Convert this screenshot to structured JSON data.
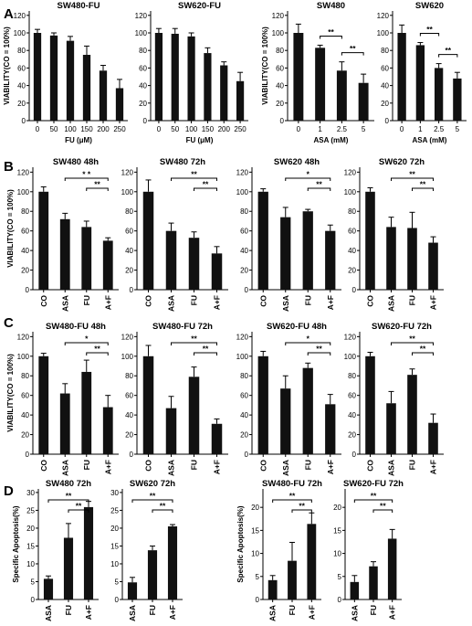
{
  "chart_data": [
    {
      "panel": "A",
      "type": "bar",
      "title": "SW480-FU",
      "categories": [
        "0",
        "50",
        "100",
        "150",
        "200",
        "250"
      ],
      "values": [
        100,
        97,
        91,
        75,
        57,
        37
      ],
      "errors": [
        4,
        3,
        5,
        10,
        6,
        10
      ],
      "xlabel": "FU (μM)",
      "ylabel": "VIABILITY(CO = 100%)",
      "ylim": [
        0,
        125
      ],
      "yticks": [
        0,
        20,
        40,
        60,
        80,
        100,
        120
      ]
    },
    {
      "panel": "A",
      "type": "bar",
      "title": "SW620-FU",
      "categories": [
        "0",
        "50",
        "100",
        "150",
        "200",
        "250"
      ],
      "values": [
        100,
        99,
        96,
        77,
        63,
        45
      ],
      "errors": [
        5,
        6,
        4,
        6,
        4,
        10
      ],
      "xlabel": "FU (μM)",
      "ylabel": "",
      "ylim": [
        0,
        125
      ],
      "yticks": [
        0,
        20,
        40,
        60,
        80,
        100,
        120
      ]
    },
    {
      "panel": "A",
      "type": "bar",
      "title": "SW480",
      "categories": [
        "0",
        "1",
        "2.5",
        "5"
      ],
      "values": [
        100,
        83,
        57,
        43
      ],
      "errors": [
        10,
        3,
        10,
        10
      ],
      "xlabel": "ASA (mM)",
      "ylabel": "VIABILITY(CO = 100%)",
      "ylim": [
        0,
        125
      ],
      "yticks": [
        0,
        20,
        40,
        60,
        80,
        100,
        120
      ],
      "significance": [
        {
          "from": 1,
          "to": 2,
          "label": "**"
        },
        {
          "from": 2,
          "to": 3,
          "label": "**"
        }
      ]
    },
    {
      "panel": "A",
      "type": "bar",
      "title": "SW620",
      "categories": [
        "0",
        "1",
        "2.5",
        "5"
      ],
      "values": [
        100,
        86,
        60,
        48
      ],
      "errors": [
        9,
        3,
        5,
        7
      ],
      "xlabel": "ASA (mM)",
      "ylabel": "",
      "ylim": [
        0,
        125
      ],
      "yticks": [
        0,
        20,
        40,
        60,
        80,
        100,
        120
      ],
      "significance": [
        {
          "from": 1,
          "to": 2,
          "label": "**"
        },
        {
          "from": 2,
          "to": 3,
          "label": "**"
        }
      ]
    },
    {
      "panel": "B",
      "type": "bar",
      "title": "SW480 48h",
      "categories": [
        "CO",
        "ASA",
        "FU",
        "A+F"
      ],
      "values": [
        100,
        72,
        64,
        50
      ],
      "errors": [
        5,
        6,
        6,
        3
      ],
      "xlabel": "",
      "ylabel": "VIABILITY(CO = 100%)",
      "ylim": [
        0,
        125
      ],
      "yticks": [
        0,
        20,
        40,
        60,
        80,
        100,
        120
      ],
      "significance": [
        {
          "from": 1,
          "to": 3,
          "label": "* *"
        },
        {
          "from": 2,
          "to": 3,
          "label": "**"
        }
      ]
    },
    {
      "panel": "B",
      "type": "bar",
      "title": "SW480 72h",
      "categories": [
        "CO",
        "ASA",
        "FU",
        "A+F"
      ],
      "values": [
        100,
        60,
        53,
        37
      ],
      "errors": [
        12,
        8,
        6,
        7
      ],
      "xlabel": "",
      "ylabel": "",
      "ylim": [
        0,
        125
      ],
      "yticks": [
        0,
        20,
        40,
        60,
        80,
        100,
        120
      ],
      "significance": [
        {
          "from": 1,
          "to": 3,
          "label": "**"
        },
        {
          "from": 2,
          "to": 3,
          "label": "**"
        }
      ]
    },
    {
      "panel": "B",
      "type": "bar",
      "title": "SW620 48h",
      "categories": [
        "CO",
        "ASA",
        "FU",
        "A+F"
      ],
      "values": [
        100,
        74,
        80,
        60
      ],
      "errors": [
        3,
        10,
        2,
        6
      ],
      "xlabel": "",
      "ylabel": "",
      "ylim": [
        0,
        125
      ],
      "yticks": [
        0,
        20,
        40,
        60,
        80,
        100,
        120
      ],
      "significance": [
        {
          "from": 1,
          "to": 3,
          "label": "*"
        },
        {
          "from": 2,
          "to": 3,
          "label": "**"
        }
      ]
    },
    {
      "panel": "B",
      "type": "bar",
      "title": "SW620 72h",
      "categories": [
        "CO",
        "ASA",
        "FU",
        "A+F"
      ],
      "values": [
        100,
        64,
        63,
        48
      ],
      "errors": [
        4,
        10,
        16,
        6
      ],
      "xlabel": "",
      "ylabel": "",
      "ylim": [
        0,
        125
      ],
      "yticks": [
        0,
        20,
        40,
        60,
        80,
        100,
        120
      ],
      "significance": [
        {
          "from": 1,
          "to": 3,
          "label": "**"
        },
        {
          "from": 2,
          "to": 3,
          "label": "**"
        }
      ]
    },
    {
      "panel": "C",
      "type": "bar",
      "title": "SW480-FU 48h",
      "categories": [
        "CO",
        "ASA",
        "FU",
        "A+F"
      ],
      "values": [
        100,
        62,
        84,
        48
      ],
      "errors": [
        3,
        10,
        12,
        12
      ],
      "xlabel": "",
      "ylabel": "VIABILITY(CO = 100%)",
      "ylim": [
        0,
        125
      ],
      "yticks": [
        0,
        20,
        40,
        60,
        80,
        100,
        120
      ],
      "significance": [
        {
          "from": 1,
          "to": 3,
          "label": "*"
        },
        {
          "from": 2,
          "to": 3,
          "label": "**"
        }
      ]
    },
    {
      "panel": "C",
      "type": "bar",
      "title": "SW480-FU 72h",
      "categories": [
        "CO",
        "ASA",
        "FU",
        "A+F"
      ],
      "values": [
        100,
        47,
        79,
        31
      ],
      "errors": [
        11,
        12,
        10,
        5
      ],
      "xlabel": "",
      "ylabel": "",
      "ylim": [
        0,
        125
      ],
      "yticks": [
        0,
        20,
        40,
        60,
        80,
        100,
        120
      ],
      "significance": [
        {
          "from": 1,
          "to": 3,
          "label": "**"
        },
        {
          "from": 2,
          "to": 3,
          "label": "**"
        }
      ]
    },
    {
      "panel": "C",
      "type": "bar",
      "title": "SW620-FU 48h",
      "categories": [
        "CO",
        "ASA",
        "FU",
        "A+F"
      ],
      "values": [
        100,
        67,
        88,
        51
      ],
      "errors": [
        5,
        13,
        5,
        10
      ],
      "xlabel": "",
      "ylabel": "",
      "ylim": [
        0,
        125
      ],
      "yticks": [
        0,
        20,
        40,
        60,
        80,
        100,
        120
      ],
      "significance": [
        {
          "from": 1,
          "to": 3,
          "label": "*"
        },
        {
          "from": 2,
          "to": 3,
          "label": "**"
        }
      ]
    },
    {
      "panel": "C",
      "type": "bar",
      "title": "SW620-FU 72h",
      "categories": [
        "CO",
        "ASA",
        "FU",
        "A+F"
      ],
      "values": [
        100,
        52,
        81,
        32
      ],
      "errors": [
        4,
        12,
        6,
        9
      ],
      "xlabel": "",
      "ylabel": "",
      "ylim": [
        0,
        125
      ],
      "yticks": [
        0,
        20,
        40,
        60,
        80,
        100,
        120
      ],
      "significance": [
        {
          "from": 1,
          "to": 3,
          "label": "**"
        },
        {
          "from": 2,
          "to": 3,
          "label": "**"
        }
      ]
    },
    {
      "panel": "D",
      "type": "bar",
      "title": "SW480 72h",
      "categories": [
        "ASA",
        "FU",
        "A+F"
      ],
      "values": [
        5.8,
        17.3,
        25.9
      ],
      "errors": [
        0.8,
        4.0,
        1.6
      ],
      "xlabel": "",
      "ylabel": "Specific Apoptosis(%)",
      "ylim": [
        0,
        31
      ],
      "yticks": [
        0,
        5,
        10,
        15,
        20,
        25,
        30
      ],
      "significance": [
        {
          "from": 0,
          "to": 2,
          "label": "**"
        },
        {
          "from": 1,
          "to": 2,
          "label": "**"
        }
      ]
    },
    {
      "panel": "D",
      "type": "bar",
      "title": "SW620 72h",
      "categories": [
        "ASA",
        "FU",
        "A+F"
      ],
      "values": [
        4.8,
        13.8,
        20.5
      ],
      "errors": [
        1.4,
        1.2,
        0.5
      ],
      "xlabel": "",
      "ylabel": "",
      "ylim": [
        0,
        31
      ],
      "yticks": [
        0,
        5,
        10,
        15,
        20,
        25,
        30
      ],
      "significance": [
        {
          "from": 0,
          "to": 2,
          "label": "**"
        },
        {
          "from": 1,
          "to": 2,
          "label": "**"
        }
      ]
    },
    {
      "panel": "D",
      "type": "bar",
      "title": "SW480-FU 72h",
      "categories": [
        "ASA",
        "FU",
        "A+F"
      ],
      "values": [
        4.2,
        8.4,
        16.4
      ],
      "errors": [
        1.0,
        4.0,
        2.4
      ],
      "xlabel": "",
      "ylabel": "Specific Apoptosis(%)",
      "ylim": [
        0,
        24
      ],
      "yticks": [
        0,
        5,
        10,
        15,
        20
      ],
      "significance": [
        {
          "from": 0,
          "to": 2,
          "label": "**"
        },
        {
          "from": 1,
          "to": 2,
          "label": "**"
        }
      ]
    },
    {
      "panel": "D",
      "type": "bar",
      "title": "SW620-FU 72h",
      "categories": [
        "ASA",
        "FU",
        "A+F"
      ],
      "values": [
        3.8,
        7.2,
        13.2
      ],
      "errors": [
        1.4,
        1.0,
        2.0
      ],
      "xlabel": "",
      "ylabel": "",
      "ylim": [
        0,
        24
      ],
      "yticks": [
        0,
        5,
        10,
        15,
        20
      ],
      "significance": [
        {
          "from": 0,
          "to": 2,
          "label": "**"
        },
        {
          "from": 1,
          "to": 2,
          "label": "**"
        }
      ]
    }
  ],
  "panel_labels": [
    "A",
    "B",
    "C",
    "D"
  ]
}
